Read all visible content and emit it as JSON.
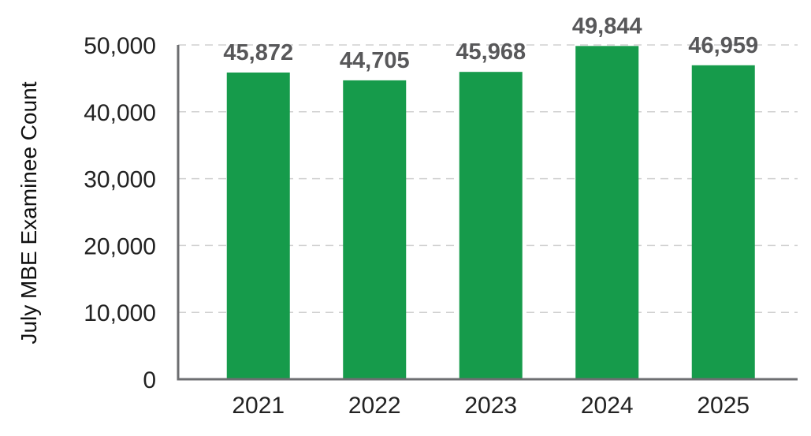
{
  "chart_data": {
    "type": "bar",
    "title": "",
    "xlabel": "",
    "ylabel": "July MBE Examinee Count",
    "categories": [
      "2021",
      "2022",
      "2023",
      "2024",
      "2025"
    ],
    "values": [
      45872,
      44705,
      45968,
      49844,
      46959
    ],
    "value_labels": [
      "45,872",
      "44,705",
      "45,968",
      "49,844",
      "46,959"
    ],
    "ylim": [
      0,
      50000
    ],
    "yticks": [
      0,
      10000,
      20000,
      30000,
      40000,
      50000
    ],
    "ytick_labels": [
      "0",
      "10,000",
      "20,000",
      "30,000",
      "40,000",
      "50,000"
    ],
    "grid": "horizontal dashed",
    "legend": "none"
  },
  "colors": {
    "bar": "#169b4b",
    "axis": "#6d6e71",
    "grid": "#d0d0d0",
    "data_label": "#58585a"
  }
}
